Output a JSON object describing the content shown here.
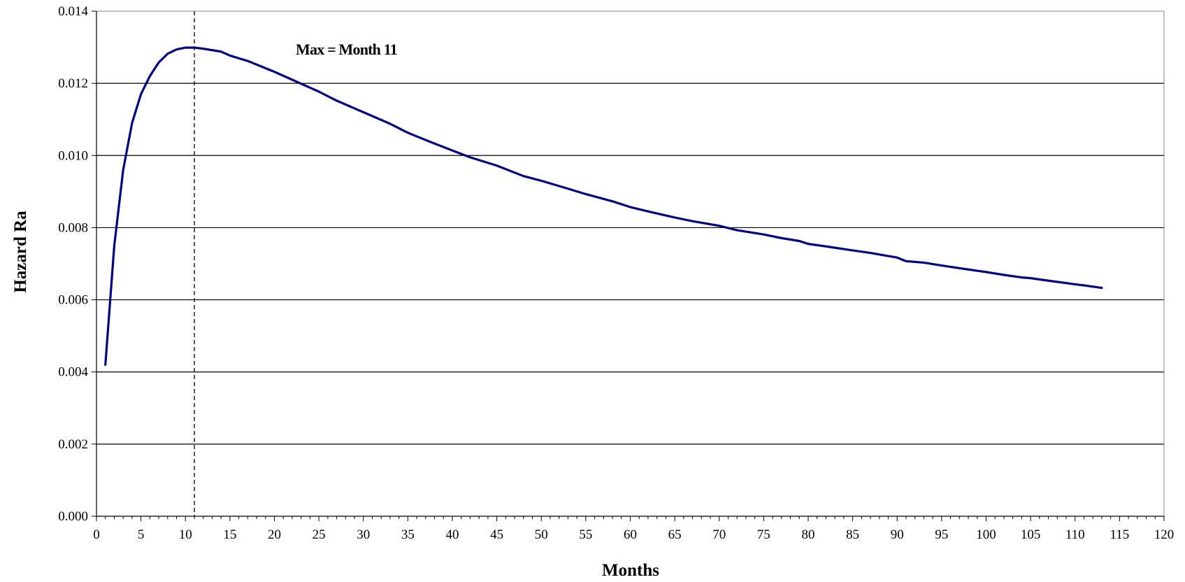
{
  "chart_data": {
    "type": "line",
    "title": "",
    "xlabel": "Months",
    "ylabel": "Hazard Ra",
    "xlim": [
      0,
      120
    ],
    "ylim": [
      0,
      0.014
    ],
    "x_tick_step": 5,
    "y_ticks": [
      0,
      0.002,
      0.004,
      0.006,
      0.008,
      0.01,
      0.012,
      0.014
    ],
    "y_tick_labels": [
      "0.000",
      "0.002",
      "0.004",
      "0.006",
      "0.008",
      "0.010",
      "0.012",
      "0.014"
    ],
    "grid": "horizontal",
    "legend": "none",
    "annotation": {
      "text": "Max = Month 11",
      "x": 22.4,
      "y": 0.0128
    },
    "reference_line": {
      "x": 11,
      "style": "dashed"
    },
    "series": [
      {
        "color": "#000080",
        "x": [
          1,
          2,
          3,
          4,
          5,
          6,
          7,
          8,
          9,
          10,
          11,
          12,
          14,
          15,
          17,
          20,
          22,
          25,
          27,
          30,
          33,
          35,
          38,
          40,
          42,
          45,
          48,
          50,
          53,
          55,
          58,
          60,
          62,
          65,
          67,
          70,
          72,
          75,
          77,
          79,
          80,
          82,
          85,
          87,
          90,
          91,
          93,
          95,
          98,
          100,
          102,
          104,
          105,
          107,
          110,
          111,
          113
        ],
        "y": [
          0.0042,
          0.0075,
          0.0096,
          0.0109,
          0.0117,
          0.0122,
          0.01258,
          0.01282,
          0.01294,
          0.01299,
          0.01299,
          0.01296,
          0.01288,
          0.01277,
          0.01262,
          0.01232,
          0.0121,
          0.01177,
          0.01152,
          0.0112,
          0.01088,
          0.01063,
          0.01033,
          0.01014,
          0.00995,
          0.00972,
          0.00943,
          0.0093,
          0.00908,
          0.00893,
          0.00873,
          0.00857,
          0.00845,
          0.00828,
          0.00818,
          0.00805,
          0.00793,
          0.00781,
          0.00771,
          0.00763,
          0.00755,
          0.00748,
          0.00737,
          0.0073,
          0.00717,
          0.00707,
          0.00703,
          0.00695,
          0.00684,
          0.00677,
          0.00669,
          0.00662,
          0.0066,
          0.00653,
          0.00643,
          0.0064,
          0.00633
        ]
      }
    ]
  }
}
